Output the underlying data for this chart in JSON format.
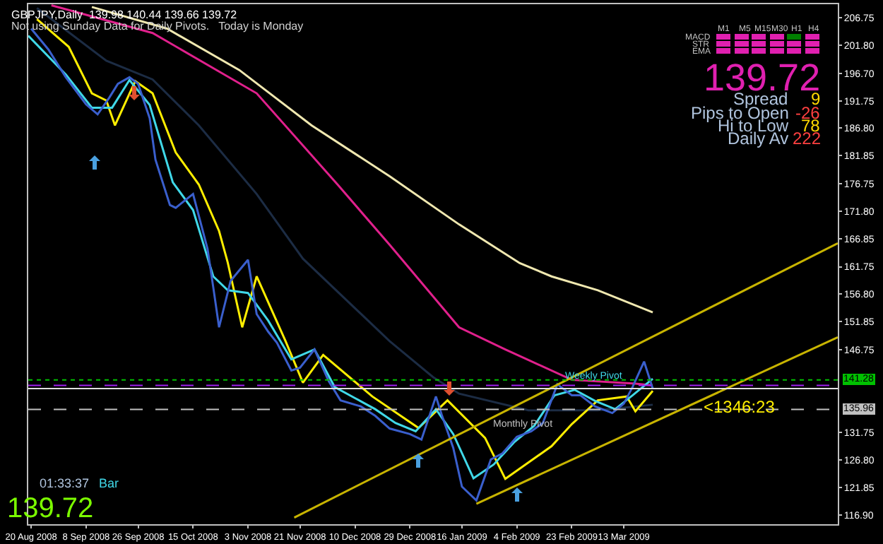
{
  "chart_data": {
    "type": "line",
    "title": "GBPJPY,Daily  139.98 140.44 139.66 139.72",
    "subtitle": "Not using Sunday Data for Daily Pivots.   Today is Monday",
    "grid": false,
    "xlim": [
      "2008-08-19",
      "2009-05-26"
    ],
    "xticks": [
      {
        "value": "2008-08-20",
        "label": "20 Aug 2008"
      },
      {
        "value": "2008-09-08",
        "label": "8 Sep 2008"
      },
      {
        "value": "2008-09-26",
        "label": "26 Sep 2008"
      },
      {
        "value": "2008-10-15",
        "label": "15 Oct 2008"
      },
      {
        "value": "2008-11-03",
        "label": "3 Nov 2008"
      },
      {
        "value": "2008-11-21",
        "label": "21 Nov 2008"
      },
      {
        "value": "2008-12-10",
        "label": "10 Dec 2008"
      },
      {
        "value": "2008-12-29",
        "label": "29 Dec 2008"
      },
      {
        "value": "2009-01-16",
        "label": "16 Jan 2009"
      },
      {
        "value": "2009-02-04",
        "label": "4 Feb 2009"
      },
      {
        "value": "2009-02-23",
        "label": "23 Feb 2009"
      },
      {
        "value": "2009-03-13",
        "label": "13 Mar 2009"
      }
    ],
    "ylim": [
      115.2,
      209.2
    ],
    "yticks": [
      {
        "value": 206.75,
        "label": "206.75"
      },
      {
        "value": 201.8,
        "label": "201.80"
      },
      {
        "value": 196.7,
        "label": "196.70"
      },
      {
        "value": 191.75,
        "label": "191.75"
      },
      {
        "value": 186.8,
        "label": "186.80"
      },
      {
        "value": 181.85,
        "label": "181.85"
      },
      {
        "value": 176.75,
        "label": "176.75"
      },
      {
        "value": 171.8,
        "label": "171.80"
      },
      {
        "value": 166.85,
        "label": "166.85"
      },
      {
        "value": 161.75,
        "label": "161.75"
      },
      {
        "value": 156.8,
        "label": "156.80"
      },
      {
        "value": 151.85,
        "label": "151.85"
      },
      {
        "value": 146.75,
        "label": "146.75"
      },
      {
        "value": 131.75,
        "label": "131.75"
      },
      {
        "value": 126.8,
        "label": "126.80"
      },
      {
        "value": 121.85,
        "label": "121.85"
      },
      {
        "value": 116.9,
        "label": "116.90"
      }
    ],
    "ref_lines": [
      {
        "axis": "y",
        "value": 141.28,
        "label": "141.28",
        "color": "#00c000",
        "line_style": "dotted"
      },
      {
        "axis": "y",
        "value": 140.3,
        "color": "#a020f0",
        "line_style": "dashed"
      },
      {
        "axis": "y",
        "value": 139.72,
        "color": "#e0e0e0",
        "line_style": "solid"
      },
      {
        "axis": "y",
        "value": 135.96,
        "label": "135.96",
        "color": "#c0c0c0",
        "line_style": "dashed"
      }
    ],
    "series": [
      {
        "color": "#f0e8b0",
        "x": [
          "2008-09-10",
          "2008-10-06",
          "2008-10-31",
          "2008-11-25",
          "2008-12-22",
          "2009-01-15",
          "2009-02-05",
          "2009-02-16",
          "2009-03-04",
          "2009-03-23"
        ],
        "values": [
          208.7,
          204.8,
          197.3,
          187.3,
          178.1,
          169.4,
          162.4,
          160.0,
          157.5,
          153.5
        ]
      },
      {
        "color": "#e0208c",
        "x": [
          "2008-08-27",
          "2008-10-01",
          "2008-11-06",
          "2008-12-04",
          "2008-12-22",
          "2009-01-15",
          "2009-01-31",
          "2009-02-23",
          "2009-03-17",
          "2009-03-23"
        ],
        "values": [
          209.0,
          204.0,
          193.1,
          176.6,
          165.7,
          150.8,
          146.8,
          141.3,
          140.6,
          140.3
        ]
      },
      {
        "color": "#1c2c44",
        "x": [
          "2008-08-22",
          "2008-09-15",
          "2008-10-01",
          "2008-10-17",
          "2008-11-06",
          "2008-11-22",
          "2008-12-22",
          "2009-01-06",
          "2009-01-15",
          "2009-02-08",
          "2009-03-04",
          "2009-03-23"
        ],
        "values": [
          208.5,
          199.0,
          195.6,
          187.3,
          174.9,
          163.2,
          148.3,
          141.8,
          138.8,
          135.8,
          135.8,
          136.8
        ]
      },
      {
        "color": "#ffee00",
        "x": [
          "2008-08-22",
          "2008-09-02",
          "2008-09-10",
          "2008-09-15",
          "2008-09-18",
          "2008-09-25",
          "2008-10-01",
          "2008-10-09",
          "2008-10-17",
          "2008-10-24",
          "2008-10-27",
          "2008-11-01",
          "2008-11-06",
          "2008-11-16",
          "2008-11-22",
          "2008-11-29",
          "2008-12-16",
          "2009-01-01",
          "2009-01-11",
          "2009-01-24",
          "2009-01-31",
          "2009-02-16",
          "2009-02-23",
          "2009-03-04",
          "2009-03-14",
          "2009-03-17",
          "2009-03-23"
        ],
        "values": [
          206.5,
          201.5,
          193.1,
          191.8,
          187.3,
          195.3,
          193.1,
          182.4,
          176.6,
          168.2,
          162.5,
          150.8,
          160.0,
          148.3,
          140.8,
          145.8,
          138.3,
          132.6,
          137.6,
          130.8,
          123.4,
          129.3,
          133.3,
          137.6,
          138.3,
          135.6,
          139.3
        ]
      },
      {
        "color": "#40d8e8",
        "x": [
          "2008-08-19",
          "2008-09-01",
          "2008-09-10",
          "2008-09-17",
          "2008-09-23",
          "2008-09-30",
          "2008-10-08",
          "2008-10-15",
          "2008-10-22",
          "2008-10-27",
          "2008-11-03",
          "2008-11-10",
          "2008-11-18",
          "2008-11-26",
          "2008-12-03",
          "2008-12-10",
          "2008-12-17",
          "2008-12-24",
          "2008-12-31",
          "2009-01-07",
          "2009-01-13",
          "2009-01-20",
          "2009-01-27",
          "2009-02-03",
          "2009-02-10",
          "2009-02-17",
          "2009-02-24",
          "2009-03-03",
          "2009-03-10",
          "2009-03-16",
          "2009-03-23"
        ],
        "values": [
          203.5,
          196.5,
          190.5,
          190.5,
          195.5,
          191.0,
          177.0,
          172.0,
          160.0,
          157.5,
          157.0,
          152.0,
          145.0,
          146.8,
          140.0,
          138.0,
          136.0,
          133.5,
          132.0,
          136.0,
          131.5,
          123.5,
          126.0,
          130.0,
          133.0,
          138.5,
          139.5,
          137.5,
          136.0,
          138.5,
          141.5
        ]
      },
      {
        "color": "#3a5fcd",
        "x": [
          "2008-08-20",
          "2008-08-26",
          "2008-09-01",
          "2008-09-08",
          "2008-09-12",
          "2008-09-16",
          "2008-09-19",
          "2008-09-23",
          "2008-09-26",
          "2008-09-30",
          "2008-10-02",
          "2008-10-07",
          "2008-10-09",
          "2008-10-15",
          "2008-10-20",
          "2008-10-22",
          "2008-10-24",
          "2008-10-28",
          "2008-11-03",
          "2008-11-06",
          "2008-11-10",
          "2008-11-13",
          "2008-11-18",
          "2008-11-21",
          "2008-11-26",
          "2008-12-01",
          "2008-12-05",
          "2008-12-12",
          "2008-12-17",
          "2008-12-22",
          "2008-12-29",
          "2009-01-02",
          "2009-01-07",
          "2009-01-09",
          "2009-01-13",
          "2009-01-16",
          "2009-01-21",
          "2009-01-26",
          "2009-01-30",
          "2009-02-04",
          "2009-02-09",
          "2009-02-13",
          "2009-02-18",
          "2009-02-23",
          "2009-02-26",
          "2009-03-03",
          "2009-03-09",
          "2009-03-13",
          "2009-03-16",
          "2009-03-20",
          "2009-03-23"
        ],
        "values": [
          204.8,
          201.0,
          196.0,
          191.1,
          189.3,
          192.3,
          194.8,
          196.0,
          194.8,
          188.6,
          181.1,
          172.9,
          172.4,
          174.9,
          165.0,
          158.0,
          150.8,
          159.2,
          163.0,
          153.2,
          150.0,
          148.0,
          143.0,
          143.5,
          146.8,
          141.0,
          137.6,
          136.5,
          134.8,
          132.5,
          131.5,
          130.5,
          138.3,
          135.0,
          129.0,
          122.0,
          119.5,
          126.9,
          128.0,
          131.0,
          132.0,
          133.5,
          140.5,
          138.5,
          138.5,
          136.5,
          135.3,
          137.0,
          140.0,
          144.6,
          139.72
        ]
      },
      {
        "color": "#c8b400",
        "x": [
          "2008-11-19",
          "2009-05-26"
        ],
        "values": [
          116.4,
          166.0
        ]
      },
      {
        "color": "#c8b400",
        "x": [
          "2009-01-21",
          "2009-05-26"
        ],
        "values": [
          118.9,
          149.0
        ]
      }
    ],
    "annotations": [
      "M1",
      "M5",
      "M15",
      "M30",
      "H1",
      "H4",
      "MACD",
      "STR",
      "EMA",
      "139.72",
      "Spread",
      "9",
      "Pips to Open",
      "-26",
      "Hi to Low",
      "78",
      "Daily Av",
      "222",
      "01:33:37",
      "Bar",
      "139.72",
      "<1346:23",
      "Weekly Pivot",
      "Monthly Pivot"
    ]
  }
}
